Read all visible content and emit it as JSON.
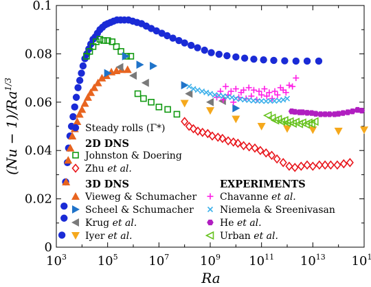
{
  "chart_data": {
    "type": "scatter",
    "xlabel": "Ra",
    "ylabel": "(Nu − 1)/Ra^{1/3}",
    "xscale": "log",
    "xlim": [
      1000,
      1000000000000000.0
    ],
    "ylim": [
      0,
      0.1
    ],
    "xticks": [
      {
        "base": "10",
        "exp": "3",
        "value": 1000
      },
      {
        "base": "10",
        "exp": "5",
        "value": 100000
      },
      {
        "base": "10",
        "exp": "7",
        "value": 10000000
      },
      {
        "base": "10",
        "exp": "9",
        "value": 1000000000
      },
      {
        "base": "10",
        "exp": "11",
        "value": 100000000000
      },
      {
        "base": "10",
        "exp": "13",
        "value": 10000000000000
      },
      {
        "base": "10",
        "exp": "15",
        "value": 1000000000000000
      }
    ],
    "yticks": [
      {
        "label": "0",
        "value": 0
      },
      {
        "label": "0.02",
        "value": 0.02
      },
      {
        "label": "0.04",
        "value": 0.04
      },
      {
        "label": "0.06",
        "value": 0.06
      },
      {
        "label": "0.08",
        "value": 0.08
      },
      {
        "label": "0.1",
        "value": 0.1
      }
    ],
    "grid": false,
    "legend_groups": [
      {
        "heading": "",
        "position": "left-upper"
      },
      {
        "heading": "2D DNS",
        "position": "left-middle"
      },
      {
        "heading": "3D DNS",
        "position": "left-lower"
      },
      {
        "heading": "EXPERIMENTS",
        "position": "right-lower"
      }
    ],
    "series": [
      {
        "name": "Steady rolls (Γ*)",
        "name_parts": [
          "Steady rolls (Γ*)"
        ],
        "marker": "circle",
        "color": "#1a2bd6",
        "group": 0,
        "points": [
          [
            1650,
            0.005
          ],
          [
            2000,
            0.012
          ],
          [
            2000,
            0.017
          ],
          [
            2300,
            0.027
          ],
          [
            2700,
            0.035
          ],
          [
            3000,
            0.041
          ],
          [
            3400,
            0.046
          ],
          [
            3900,
            0.05
          ],
          [
            4500,
            0.054
          ],
          [
            5200,
            0.058
          ],
          [
            6000,
            0.062
          ],
          [
            7000,
            0.066
          ],
          [
            8200,
            0.069
          ],
          [
            9500,
            0.072
          ],
          [
            11000,
            0.075
          ],
          [
            13000,
            0.078
          ],
          [
            15500,
            0.08
          ],
          [
            18500,
            0.082
          ],
          [
            22000,
            0.084
          ],
          [
            27000,
            0.086
          ],
          [
            33000,
            0.087
          ],
          [
            40000,
            0.0885
          ],
          [
            50000,
            0.09
          ],
          [
            63000,
            0.091
          ],
          [
            80000,
            0.092
          ],
          [
            100000,
            0.0925
          ],
          [
            130000,
            0.093
          ],
          [
            170000,
            0.0935
          ],
          [
            230000,
            0.094
          ],
          [
            320000,
            0.094
          ],
          [
            450000,
            0.094
          ],
          [
            650000,
            0.094
          ],
          [
            950000,
            0.0935
          ],
          [
            1400000,
            0.093
          ],
          [
            2100000,
            0.0925
          ],
          [
            3200000,
            0.0915
          ],
          [
            5000000,
            0.0905
          ],
          [
            8000000,
            0.0895
          ],
          [
            13000000,
            0.0885
          ],
          [
            21000000,
            0.0875
          ],
          [
            35000000,
            0.0865
          ],
          [
            60000000,
            0.0855
          ],
          [
            100000000,
            0.0845
          ],
          [
            180000000,
            0.0835
          ],
          [
            320000000,
            0.0825
          ],
          [
            600000000,
            0.0815
          ],
          [
            1100000000,
            0.0805
          ],
          [
            2200000000,
            0.0798
          ],
          [
            4500000000,
            0.0792
          ],
          [
            10000000000,
            0.0787
          ],
          [
            22000000000,
            0.0782
          ],
          [
            50000000000,
            0.0778
          ],
          [
            120000000000,
            0.0775
          ],
          [
            300000000000,
            0.0773
          ],
          [
            800000000000,
            0.0771
          ],
          [
            2200000000000,
            0.077
          ],
          [
            6000000000000,
            0.077
          ],
          [
            17000000000000,
            0.077
          ]
        ]
      },
      {
        "name": "Johnston & Doering",
        "name_parts": [
          "Johnston & Doering"
        ],
        "marker": "square-open",
        "color": "#119911",
        "group": 1,
        "points": [
          [
            15000,
            0.079
          ],
          [
            20000,
            0.081
          ],
          [
            27000,
            0.083
          ],
          [
            36000,
            0.085
          ],
          [
            50000,
            0.086
          ],
          [
            70000,
            0.0855
          ],
          [
            100000,
            0.0855
          ],
          [
            150000,
            0.085
          ],
          [
            220000,
            0.083
          ],
          [
            330000,
            0.081
          ],
          [
            550000,
            0.079
          ],
          [
            800000,
            0.079
          ],
          [
            1500000,
            0.0635
          ],
          [
            2500000,
            0.0615
          ],
          [
            5000000,
            0.06
          ],
          [
            10000000,
            0.058
          ],
          [
            22000000,
            0.057
          ],
          [
            50000000,
            0.055
          ]
        ]
      },
      {
        "name": "Zhu et al.",
        "name_parts": [
          "Zhu ",
          "et al."
        ],
        "marker": "diamond-open",
        "color": "#e8151b",
        "group": 1,
        "points": [
          [
            100000000,
            0.052
          ],
          [
            150000000,
            0.05
          ],
          [
            220000000,
            0.049
          ],
          [
            330000000,
            0.048
          ],
          [
            500000000,
            0.0475
          ],
          [
            800000000,
            0.047
          ],
          [
            1200000000,
            0.046
          ],
          [
            2000000000,
            0.0455
          ],
          [
            3000000000,
            0.045
          ],
          [
            5000000000,
            0.044
          ],
          [
            8000000000,
            0.0435
          ],
          [
            12000000000,
            0.043
          ],
          [
            20000000000,
            0.042
          ],
          [
            33000000000,
            0.0415
          ],
          [
            55000000000,
            0.041
          ],
          [
            90000000000,
            0.04
          ],
          [
            150000000000,
            0.039
          ],
          [
            250000000000,
            0.038
          ],
          [
            400000000000,
            0.0365
          ],
          [
            700000000000,
            0.035
          ],
          [
            1200000000000,
            0.0335
          ],
          [
            2000000000000,
            0.033
          ],
          [
            3500000000000,
            0.0335
          ],
          [
            6000000000000,
            0.034
          ],
          [
            10000000000000,
            0.0335
          ],
          [
            18000000000000,
            0.034
          ],
          [
            30000000000000,
            0.034
          ],
          [
            50000000000000,
            0.034
          ],
          [
            90000000000000,
            0.034
          ],
          [
            160000000000000,
            0.0345
          ],
          [
            280000000000000,
            0.035
          ]
        ]
      },
      {
        "name": "Vieweg & Schumacher",
        "name_parts": [
          "Vieweg & Schumacher"
        ],
        "marker": "triangle-up",
        "color": "#e8641f",
        "group": 2,
        "points": [
          [
            2400,
            0.027
          ],
          [
            2900,
            0.036
          ],
          [
            3500,
            0.041
          ],
          [
            4200,
            0.046
          ],
          [
            5200,
            0.049
          ],
          [
            6500,
            0.052
          ],
          [
            8000,
            0.055
          ],
          [
            10000,
            0.057
          ],
          [
            13000,
            0.0595
          ],
          [
            17000,
            0.062
          ],
          [
            22000,
            0.064
          ],
          [
            30000,
            0.066
          ],
          [
            42000,
            0.068
          ],
          [
            60000,
            0.07
          ],
          [
            90000,
            0.071
          ],
          [
            140000,
            0.0725
          ],
          [
            220000,
            0.073
          ],
          [
            350000,
            0.0735
          ],
          [
            600000,
            0.0735
          ]
        ]
      },
      {
        "name": "Scheel & Schumacher",
        "name_parts": [
          "Scheel & Schumacher"
        ],
        "marker": "triangle-right",
        "color": "#1f73c9",
        "group": 2,
        "points": [
          [
            100000,
            0.072
          ],
          [
            500000,
            0.079
          ],
          [
            1800000,
            0.0755
          ],
          [
            6000000,
            0.075
          ],
          [
            100000000,
            0.067
          ],
          [
            10000000000,
            0.0575
          ]
        ]
      },
      {
        "name": "Krug et al.",
        "name_parts": [
          "Krug ",
          "et al."
        ],
        "marker": "triangle-left",
        "color": "#7a7a7a",
        "group": 2,
        "points": [
          [
            300000,
            0.0745
          ],
          [
            1000000,
            0.071
          ],
          [
            3000000,
            0.068
          ],
          [
            150000000,
            0.0635
          ],
          [
            1000000000,
            0.06
          ],
          [
            3000000000,
            0.0605
          ]
        ]
      },
      {
        "name": "Iyer et al.",
        "name_parts": [
          "Iyer ",
          "et al."
        ],
        "marker": "triangle-down",
        "color": "#f5a81c",
        "group": 2,
        "points": [
          [
            100000000,
            0.0595
          ],
          [
            1000000000,
            0.0565
          ],
          [
            10000000000,
            0.053
          ],
          [
            100000000000,
            0.05
          ],
          [
            1000000000000,
            0.049
          ],
          [
            10000000000000,
            0.0485
          ],
          [
            100000000000000,
            0.048
          ],
          [
            1000000000000000,
            0.0485
          ]
        ]
      },
      {
        "name": "Chavanne et al.",
        "name_parts": [
          "Chavanne ",
          "et al."
        ],
        "marker": "plus",
        "color": "#ff1ee6",
        "group": 3,
        "points": [
          [
            1800000000,
            0.062
          ],
          [
            2500000000,
            0.0645
          ],
          [
            3200000000,
            0.061
          ],
          [
            4000000000,
            0.0665
          ],
          [
            5000000000,
            0.063
          ],
          [
            6500000000,
            0.0645
          ],
          [
            8000000000,
            0.06
          ],
          [
            10000000000,
            0.0655
          ],
          [
            13000000000,
            0.062
          ],
          [
            16000000000,
            0.064
          ],
          [
            20000000000,
            0.065
          ],
          [
            25000000000,
            0.0615
          ],
          [
            32000000000,
            0.066
          ],
          [
            40000000000,
            0.0625
          ],
          [
            50000000000,
            0.065
          ],
          [
            65000000000,
            0.061
          ],
          [
            80000000000,
            0.0645
          ],
          [
            100000000000,
            0.063
          ],
          [
            130000000000,
            0.0655
          ],
          [
            160000000000,
            0.0625
          ],
          [
            200000000000,
            0.064
          ],
          [
            260000000000,
            0.0615
          ],
          [
            330000000000,
            0.0645
          ],
          [
            420000000000,
            0.063
          ],
          [
            550000000000,
            0.066
          ],
          [
            700000000000,
            0.065
          ],
          [
            900000000000,
            0.064
          ],
          [
            1200000000000,
            0.067
          ],
          [
            1600000000000,
            0.0665
          ],
          [
            2200000000000,
            0.07
          ]
        ]
      },
      {
        "name": "Niemela & Sreenivasan",
        "name_parts": [
          "Niemela & Sreenivasan"
        ],
        "marker": "x",
        "color": "#3cb0ea",
        "group": 3,
        "points": [
          [
            150000000,
            0.0665
          ],
          [
            220000000,
            0.0655
          ],
          [
            320000000,
            0.065
          ],
          [
            480000000,
            0.0645
          ],
          [
            700000000,
            0.064
          ],
          [
            1000000000,
            0.0635
          ],
          [
            1500000000,
            0.063
          ],
          [
            2200000000,
            0.0628
          ],
          [
            3200000000,
            0.0625
          ],
          [
            4800000000,
            0.0622
          ],
          [
            7000000000,
            0.062
          ],
          [
            10000000000,
            0.0615
          ],
          [
            15000000000,
            0.0612
          ],
          [
            22000000000,
            0.061
          ],
          [
            32000000000,
            0.0608
          ],
          [
            48000000000,
            0.0606
          ],
          [
            70000000000,
            0.0605
          ],
          [
            100000000000,
            0.0605
          ],
          [
            150000000000,
            0.0604
          ],
          [
            220000000000,
            0.0605
          ],
          [
            320000000000,
            0.0605
          ],
          [
            480000000000,
            0.0607
          ],
          [
            700000000000,
            0.061
          ],
          [
            1000000000000,
            0.0615
          ]
        ]
      },
      {
        "name": "He et al.",
        "name_parts": [
          "He ",
          "et al."
        ],
        "marker": "hexagon",
        "color": "#b01ec0",
        "group": 3,
        "points": [
          [
            1500000000000,
            0.0562
          ],
          [
            2000000000000,
            0.056
          ],
          [
            3000000000000,
            0.0558
          ],
          [
            4000000000000,
            0.0558
          ],
          [
            6000000000000,
            0.0556
          ],
          [
            9000000000000,
            0.0555
          ],
          [
            13000000000000,
            0.0552
          ],
          [
            20000000000000,
            0.055
          ],
          [
            30000000000000,
            0.055
          ],
          [
            45000000000000,
            0.055
          ],
          [
            70000000000000,
            0.055
          ],
          [
            100000000000000,
            0.0552
          ],
          [
            150000000000000,
            0.0555
          ],
          [
            230000000000000,
            0.0558
          ],
          [
            350000000000000,
            0.0562
          ],
          [
            550000000000000,
            0.0568
          ],
          [
            800000000000000,
            0.0565
          ]
        ]
      },
      {
        "name": "Urban et al.",
        "name_parts": [
          "Urban ",
          "et al."
        ],
        "marker": "triangle-left-open",
        "color": "#66c21e",
        "group": 3,
        "points": [
          [
            180000000000,
            0.0545
          ],
          [
            260000000000,
            0.0535
          ],
          [
            350000000000,
            0.0525
          ],
          [
            450000000000,
            0.053
          ],
          [
            600000000000,
            0.052
          ],
          [
            800000000000,
            0.0525
          ],
          [
            1000000000000,
            0.0515
          ],
          [
            1300000000000,
            0.052
          ],
          [
            1700000000000,
            0.0512
          ],
          [
            2200000000000,
            0.0518
          ],
          [
            3000000000000,
            0.051
          ],
          [
            4000000000000,
            0.0515
          ],
          [
            5500000000000,
            0.0508
          ],
          [
            7000000000000,
            0.0515
          ],
          [
            9000000000000,
            0.051
          ],
          [
            12000000000000,
            0.052
          ]
        ]
      }
    ]
  }
}
